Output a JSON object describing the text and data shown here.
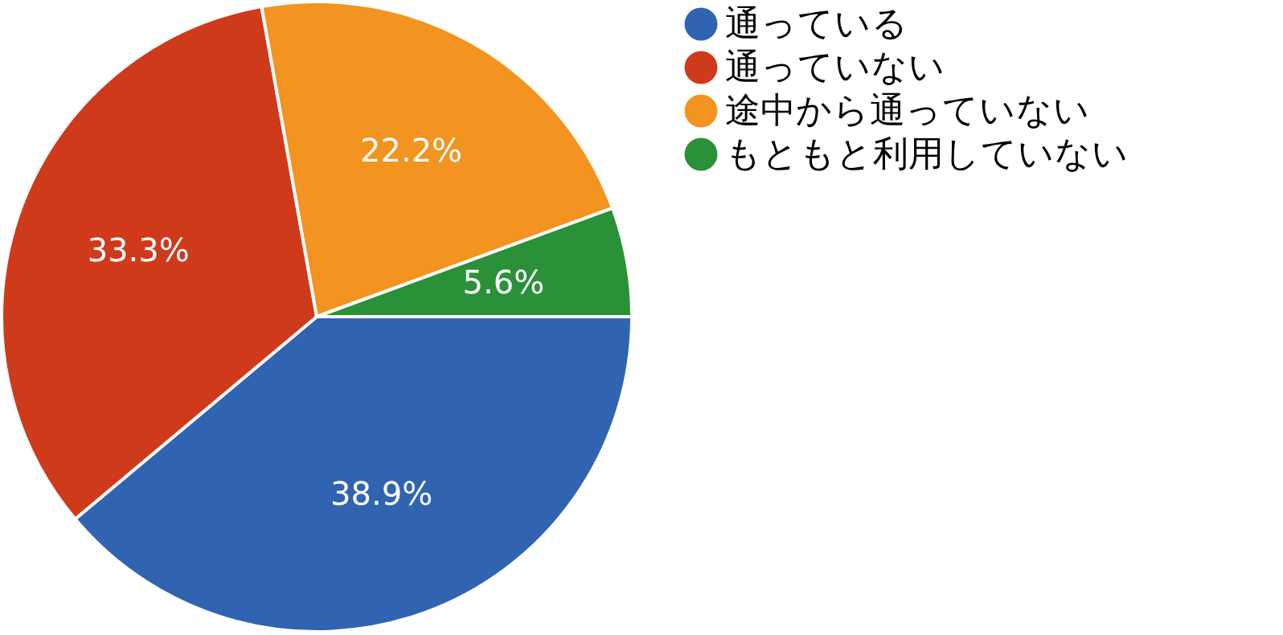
{
  "chart_data": {
    "type": "pie",
    "categories": [
      "通っている",
      "通っていない",
      "途中から通っていない",
      "もともと利用していない"
    ],
    "values": [
      38.9,
      33.3,
      22.2,
      5.6
    ],
    "colors": [
      "#3164b0",
      "#cf3a1b",
      "#f2941f",
      "#2b9138"
    ],
    "value_labels": [
      "38.9%",
      "33.3%",
      "22.2%",
      "5.6%"
    ],
    "legend": "right"
  }
}
